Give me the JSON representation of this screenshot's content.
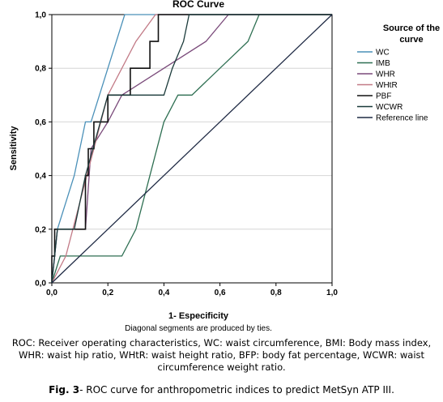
{
  "chart_data": {
    "type": "line",
    "title": "ROC Curve",
    "xlabel": "1- Especificity",
    "ylabel": "Sensitivity",
    "note": "Diagonal segments are produced by ties.",
    "xlim": [
      0,
      1
    ],
    "ylim": [
      0,
      1
    ],
    "x_ticks": [
      "0,0",
      "0,2",
      "0,4",
      "0,6",
      "0,8",
      "1,0"
    ],
    "y_ticks": [
      "0,0",
      "0,2",
      "0,4",
      "0,6",
      "0,8",
      "1,0"
    ],
    "grid": "horizontal",
    "legend_title_line1": "Source of the",
    "legend_title_line2": "curve",
    "legend_position": "right",
    "series": [
      {
        "name": "WC",
        "color": "#4a90b8",
        "points": [
          [
            0,
            0
          ],
          [
            0.01,
            0.1
          ],
          [
            0.02,
            0.2
          ],
          [
            0.05,
            0.3
          ],
          [
            0.08,
            0.4
          ],
          [
            0.12,
            0.6
          ],
          [
            0.14,
            0.6
          ],
          [
            0.2,
            0.8
          ],
          [
            0.26,
            1.0
          ],
          [
            1,
            1
          ]
        ]
      },
      {
        "name": "IMB",
        "color": "#2e6f52",
        "points": [
          [
            0,
            0
          ],
          [
            0.03,
            0.1
          ],
          [
            0.25,
            0.1
          ],
          [
            0.3,
            0.2
          ],
          [
            0.35,
            0.4
          ],
          [
            0.4,
            0.6
          ],
          [
            0.45,
            0.7
          ],
          [
            0.5,
            0.7
          ],
          [
            0.6,
            0.8
          ],
          [
            0.7,
            0.9
          ],
          [
            0.74,
            1.0
          ],
          [
            1,
            1
          ]
        ]
      },
      {
        "name": "WHR",
        "color": "#7a4a7a",
        "points": [
          [
            0,
            0
          ],
          [
            0.02,
            0.2
          ],
          [
            0.12,
            0.2
          ],
          [
            0.14,
            0.5
          ],
          [
            0.2,
            0.6
          ],
          [
            0.25,
            0.7
          ],
          [
            0.4,
            0.8
          ],
          [
            0.55,
            0.9
          ],
          [
            0.63,
            1.0
          ],
          [
            1,
            1
          ]
        ]
      },
      {
        "name": "WHtR",
        "color": "#c27a86",
        "points": [
          [
            0,
            0
          ],
          [
            0.05,
            0.1
          ],
          [
            0.1,
            0.3
          ],
          [
            0.15,
            0.5
          ],
          [
            0.2,
            0.7
          ],
          [
            0.3,
            0.9
          ],
          [
            0.37,
            1.0
          ],
          [
            1,
            1
          ]
        ]
      },
      {
        "name": "PBF",
        "color": "#111111",
        "points": [
          [
            0,
            0
          ],
          [
            0,
            0.1
          ],
          [
            0.01,
            0.1
          ],
          [
            0.01,
            0.2
          ],
          [
            0.12,
            0.2
          ],
          [
            0.12,
            0.4
          ],
          [
            0.13,
            0.4
          ],
          [
            0.13,
            0.5
          ],
          [
            0.15,
            0.5
          ],
          [
            0.15,
            0.6
          ],
          [
            0.2,
            0.6
          ],
          [
            0.2,
            0.7
          ],
          [
            0.28,
            0.7
          ],
          [
            0.28,
            0.8
          ],
          [
            0.35,
            0.8
          ],
          [
            0.35,
            0.9
          ],
          [
            0.38,
            0.9
          ],
          [
            0.38,
            1.0
          ],
          [
            1,
            1
          ]
        ]
      },
      {
        "name": "WCWR",
        "color": "#1a3a3a",
        "points": [
          [
            0,
            0
          ],
          [
            0.02,
            0.2
          ],
          [
            0.08,
            0.2
          ],
          [
            0.12,
            0.4
          ],
          [
            0.2,
            0.7
          ],
          [
            0.3,
            0.7
          ],
          [
            0.4,
            0.7
          ],
          [
            0.43,
            0.8
          ],
          [
            0.47,
            0.9
          ],
          [
            0.49,
            1.0
          ],
          [
            1,
            1
          ]
        ]
      },
      {
        "name": "Reference line",
        "color": "#1f2a44",
        "points": [
          [
            0,
            0
          ],
          [
            1,
            1
          ]
        ]
      }
    ]
  },
  "caption": {
    "text": "ROC: Receiver operating characteristics, WC:  waist circumference, BMI: Body mass index, WHR: waist hip ratio, WHtR: waist height ratio, BFP: body fat percentage, WCWR: waist circumference weight ratio.",
    "fig_label": "Fig. 3",
    "fig_text": "- ROC curve for anthropometric indices to predict MetSyn ATP III."
  }
}
